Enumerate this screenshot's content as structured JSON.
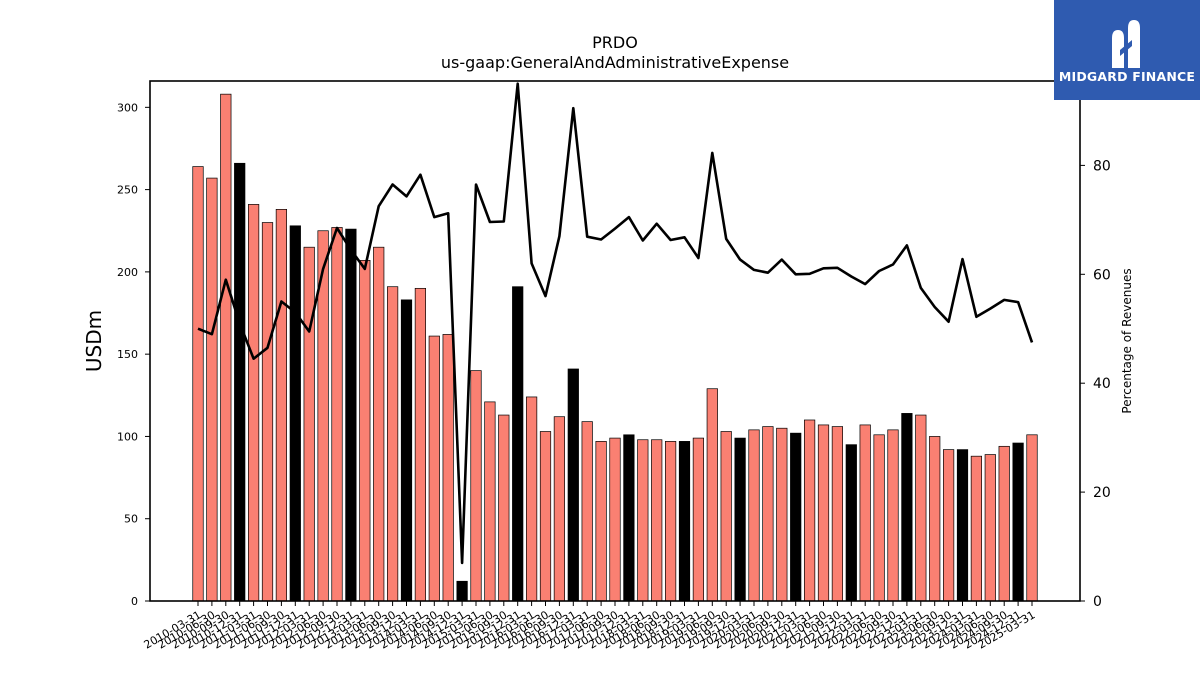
{
  "logo": {
    "brand_text": "MIDGARD FINANCE",
    "bg_color": "#2f5bb0"
  },
  "chart_data": {
    "type": "bar",
    "title": "PRDO",
    "subtitle": "us-gaap:GeneralAndAdministrativeExpense",
    "ylabel": "USDm",
    "y2label": "Percentage of Revenues",
    "ylim": [
      0,
      316
    ],
    "y2lim": [
      0,
      95.5
    ],
    "yticks": [
      0,
      50,
      100,
      150,
      200,
      250,
      300
    ],
    "y2ticks": [
      0,
      20,
      40,
      60,
      80
    ],
    "colors": {
      "quarter_bar": "#fa8072",
      "annual_bar": "#000000",
      "line": "#000000"
    },
    "categories": [
      "2010-03-31",
      "2010-06-30",
      "2010-09-30",
      "2010-12-31",
      "2011-03-31",
      "2011-06-30",
      "2011-09-30",
      "2011-12-31",
      "2012-03-31",
      "2012-06-30",
      "2012-09-30",
      "2012-12-31",
      "2013-03-31",
      "2013-06-30",
      "2013-09-30",
      "2013-12-31",
      "2014-03-31",
      "2014-06-30",
      "2014-09-30",
      "2014-12-31",
      "2015-03-31",
      "2015-06-30",
      "2015-09-30",
      "2015-12-31",
      "2016-03-31",
      "2016-06-30",
      "2016-09-30",
      "2016-12-31",
      "2017-03-31",
      "2017-06-30",
      "2017-09-30",
      "2017-12-31",
      "2018-03-31",
      "2018-06-30",
      "2018-09-30",
      "2018-12-31",
      "2019-03-31",
      "2019-06-30",
      "2019-09-30",
      "2019-12-31",
      "2020-03-31",
      "2020-06-30",
      "2020-09-30",
      "2020-12-31",
      "2021-03-31",
      "2021-06-30",
      "2021-09-30",
      "2021-12-31",
      "2022-03-31",
      "2022-06-30",
      "2022-09-30",
      "2022-12-31",
      "2023-03-31",
      "2023-06-30",
      "2023-09-30",
      "2023-12-31",
      "2024-03-31",
      "2024-06-30",
      "2024-09-30",
      "2024-12-31",
      "2025-03-31"
    ],
    "series": [
      {
        "type": "bar",
        "values": [
          264,
          257,
          308,
          266,
          241,
          230,
          238,
          228,
          215,
          225,
          227,
          226,
          207,
          215,
          191,
          183,
          190,
          161,
          162,
          12,
          140,
          121,
          113,
          191,
          124,
          103,
          112,
          141,
          109,
          97,
          99,
          101,
          98,
          98,
          97,
          97,
          99,
          129,
          103,
          99,
          104,
          106,
          105,
          102,
          110,
          107,
          106,
          95,
          107,
          101,
          104,
          114,
          113,
          100,
          92,
          92,
          88,
          89,
          94,
          96,
          101
        ],
        "annual": [
          false,
          false,
          false,
          true,
          false,
          false,
          false,
          true,
          false,
          false,
          false,
          true,
          false,
          false,
          false,
          true,
          false,
          false,
          false,
          true,
          false,
          false,
          false,
          true,
          false,
          false,
          false,
          true,
          false,
          false,
          false,
          true,
          false,
          false,
          false,
          true,
          false,
          false,
          false,
          true,
          false,
          false,
          false,
          true,
          false,
          false,
          false,
          true,
          false,
          false,
          false,
          true,
          false,
          false,
          false,
          true,
          false,
          false,
          false,
          true,
          false
        ]
      },
      {
        "type": "line",
        "axis": "right",
        "values": [
          50,
          49,
          59,
          51,
          44.5,
          46.5,
          55,
          53,
          49.5,
          61,
          68.5,
          64.5,
          61,
          72.5,
          76.5,
          74.3,
          78.3,
          70.5,
          71.2,
          7,
          76.5,
          69.6,
          69.7,
          95,
          62,
          56,
          67,
          90.5,
          66.9,
          66.4,
          68.4,
          70.5,
          66.2,
          69.3,
          66.3,
          66.8,
          63,
          82.3,
          66.5,
          62.7,
          60.8,
          60.3,
          62.7,
          60,
          60.1,
          61.1,
          61.2,
          59.6,
          58.2,
          60.6,
          61.8,
          65.3,
          57.5,
          54,
          51.3,
          62.8,
          52.2,
          53.7,
          55.3,
          54.9,
          47.5
        ]
      }
    ]
  }
}
